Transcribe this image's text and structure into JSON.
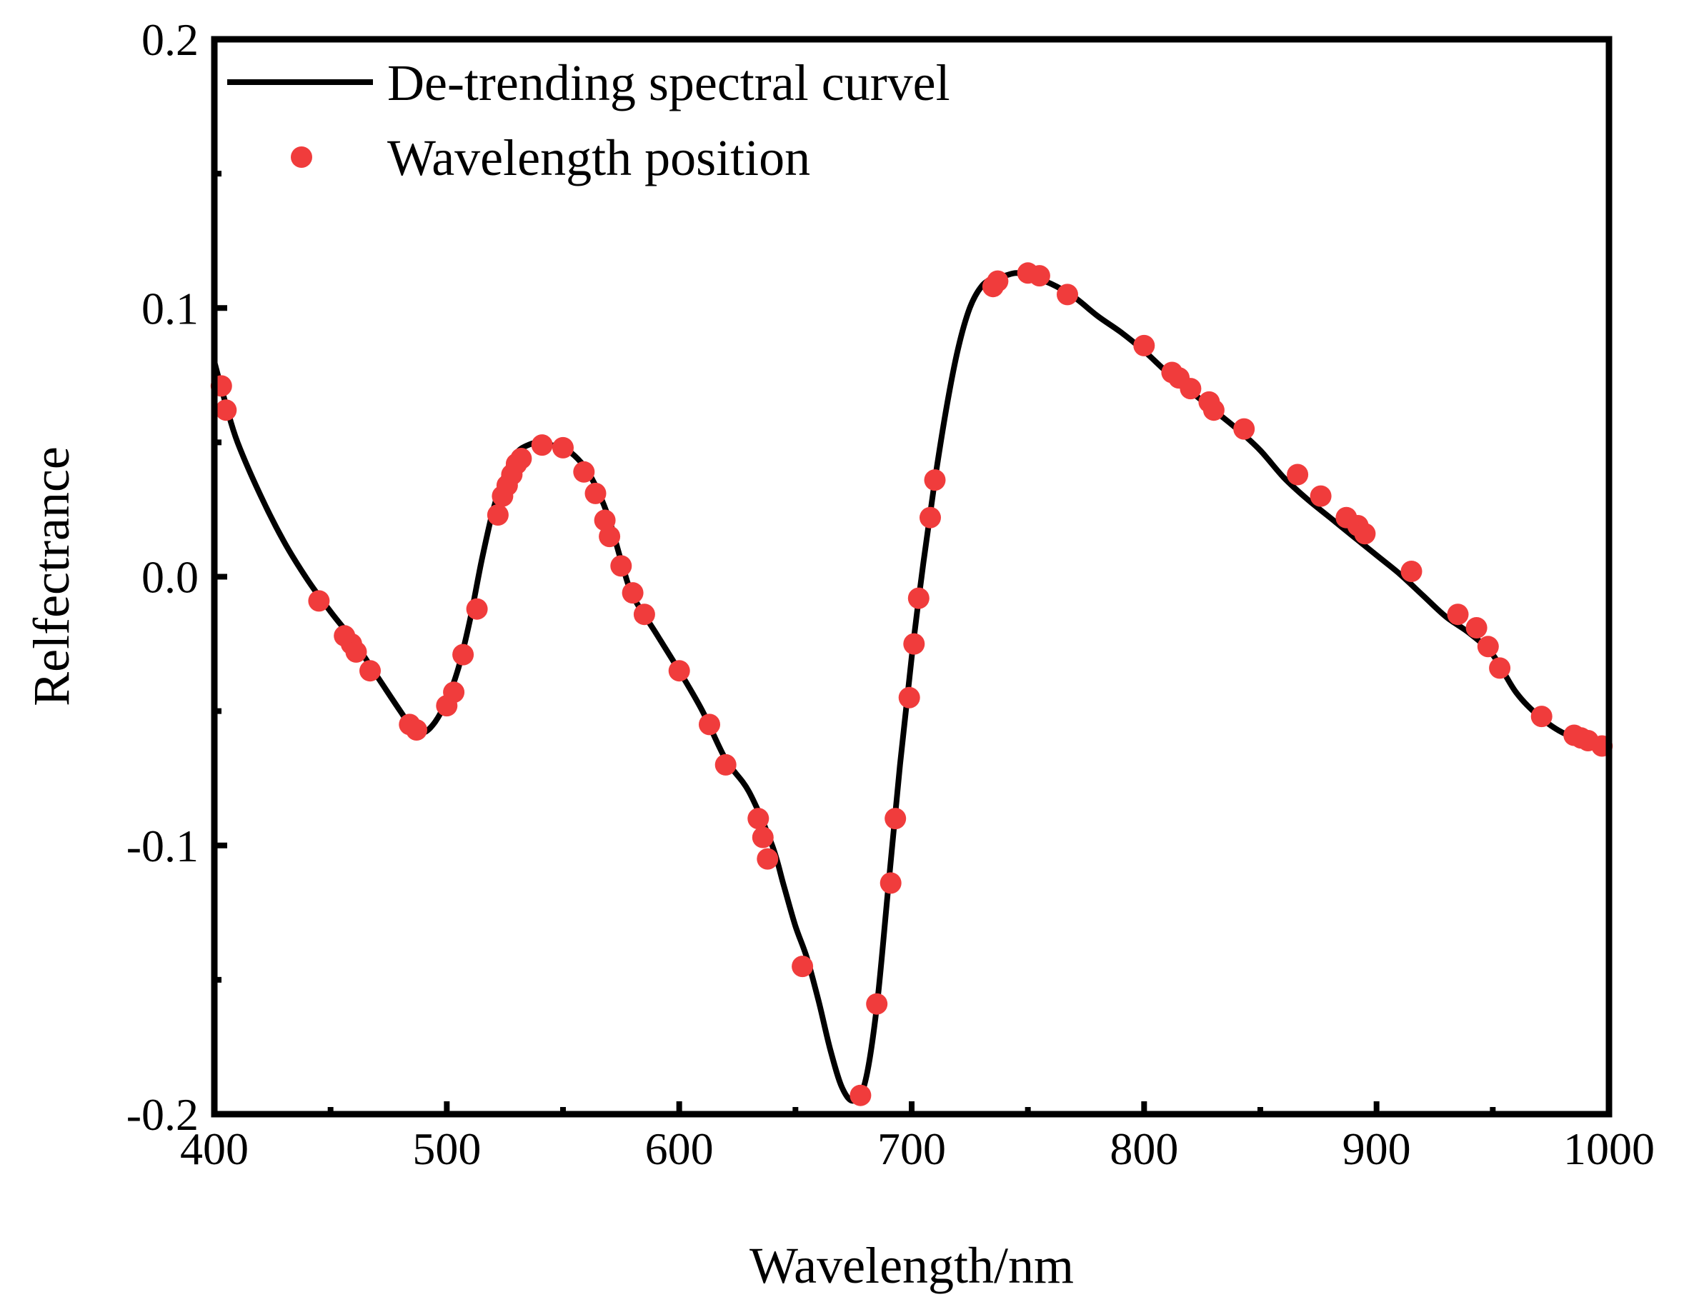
{
  "chart_data": {
    "type": "line",
    "title": "",
    "xlabel": "Wavelength/nm",
    "ylabel": "Relfectrance",
    "xlim": [
      400,
      1000
    ],
    "ylim": [
      -0.2,
      0.2
    ],
    "x_ticks": [
      400,
      500,
      600,
      700,
      800,
      900,
      1000
    ],
    "x_tick_labels": [
      "400",
      "500",
      "600",
      "700",
      "800",
      "900",
      "1000"
    ],
    "y_ticks": [
      -0.2,
      -0.1,
      0.0,
      0.1,
      0.2
    ],
    "y_tick_labels": [
      "-0.2",
      "-0.1",
      "0.0",
      "0.1",
      "0.2"
    ],
    "grid": false,
    "legend_position": "top-left",
    "series": [
      {
        "name": "De-trending spectral curvel",
        "kind": "line",
        "color": "#000000",
        "x": [
          400,
          405,
          410,
          420,
          430,
          440,
          450,
          460,
          470,
          480,
          485,
          490,
          495,
          500,
          505,
          510,
          515,
          520,
          525,
          530,
          535,
          540,
          545,
          550,
          555,
          560,
          565,
          570,
          575,
          580,
          590,
          600,
          610,
          620,
          630,
          640,
          645,
          650,
          655,
          660,
          665,
          670,
          675,
          680,
          685,
          690,
          695,
          700,
          705,
          710,
          715,
          720,
          725,
          730,
          735,
          740,
          745,
          750,
          760,
          770,
          780,
          790,
          800,
          810,
          820,
          830,
          840,
          850,
          860,
          870,
          880,
          890,
          900,
          910,
          920,
          930,
          940,
          950,
          960,
          970,
          980,
          990,
          1000
        ],
        "y": [
          0.08,
          0.064,
          0.05,
          0.03,
          0.013,
          -0.001,
          -0.013,
          -0.024,
          -0.037,
          -0.05,
          -0.056,
          -0.058,
          -0.054,
          -0.046,
          -0.034,
          -0.016,
          0.006,
          0.025,
          0.038,
          0.046,
          0.049,
          0.05,
          0.049,
          0.048,
          0.045,
          0.04,
          0.032,
          0.021,
          0.006,
          -0.007,
          -0.021,
          -0.035,
          -0.05,
          -0.068,
          -0.08,
          -0.1,
          -0.115,
          -0.13,
          -0.142,
          -0.158,
          -0.176,
          -0.19,
          -0.195,
          -0.188,
          -0.16,
          -0.115,
          -0.07,
          -0.03,
          0.005,
          0.036,
          0.063,
          0.085,
          0.1,
          0.108,
          0.111,
          0.112,
          0.113,
          0.112,
          0.109,
          0.104,
          0.097,
          0.091,
          0.084,
          0.076,
          0.069,
          0.062,
          0.055,
          0.047,
          0.037,
          0.029,
          0.022,
          0.015,
          0.008,
          0.001,
          -0.007,
          -0.015,
          -0.021,
          -0.029,
          -0.043,
          -0.052,
          -0.058,
          -0.061,
          -0.063
        ]
      },
      {
        "name": "Wavelength position",
        "kind": "scatter",
        "color": "#f03c3c",
        "x": [
          403,
          405,
          445,
          456,
          459,
          461,
          467,
          484,
          487,
          500,
          503,
          507,
          513,
          522,
          524,
          526,
          528,
          530,
          532,
          541,
          550,
          559,
          564,
          568,
          570,
          575,
          580,
          585,
          600,
          613,
          620,
          634,
          636,
          638,
          653,
          678,
          685,
          691,
          693,
          699,
          701,
          703,
          708,
          710,
          735,
          737,
          750,
          755,
          767,
          800,
          812,
          815,
          820,
          828,
          830,
          843,
          866,
          876,
          887,
          892,
          895,
          915,
          935,
          943,
          948,
          953,
          971,
          985,
          988,
          991,
          997
        ],
        "y": [
          0.071,
          0.062,
          -0.009,
          -0.022,
          -0.025,
          -0.028,
          -0.035,
          -0.055,
          -0.057,
          -0.048,
          -0.043,
          -0.029,
          -0.012,
          0.023,
          0.03,
          0.034,
          0.038,
          0.042,
          0.044,
          0.049,
          0.048,
          0.039,
          0.031,
          0.021,
          0.015,
          0.004,
          -0.006,
          -0.014,
          -0.035,
          -0.055,
          -0.07,
          -0.09,
          -0.097,
          -0.105,
          -0.145,
          -0.193,
          -0.159,
          -0.114,
          -0.09,
          -0.045,
          -0.025,
          -0.008,
          0.022,
          0.036,
          0.108,
          0.11,
          0.113,
          0.112,
          0.105,
          0.086,
          0.076,
          0.074,
          0.07,
          0.065,
          0.062,
          0.055,
          0.038,
          0.03,
          0.022,
          0.019,
          0.016,
          0.002,
          -0.014,
          -0.019,
          -0.026,
          -0.034,
          -0.052,
          -0.059,
          -0.06,
          -0.061,
          -0.063
        ]
      }
    ]
  }
}
